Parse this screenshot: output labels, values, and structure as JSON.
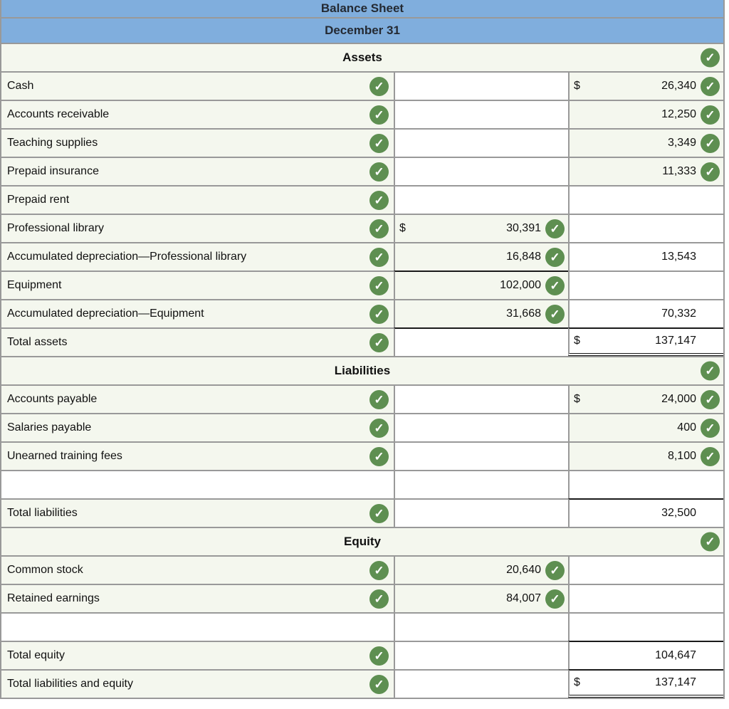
{
  "icons": {
    "check": "✓"
  },
  "colors": {
    "header_blue": "#80aedd",
    "correct_cell_green": "#f4f7ee",
    "check_green": "#5e8f51",
    "grid_border": "#999999",
    "total_line_black": "#1a1a1a"
  },
  "rows": [
    {
      "label": "Balance Sheet"
    },
    {
      "label": "December 31"
    },
    {
      "label": "Assets"
    },
    {
      "label": "Cash",
      "right_cur": "$",
      "right_val": "26,340"
    },
    {
      "label": "Accounts receivable",
      "right_val": "12,250"
    },
    {
      "label": "Teaching supplies",
      "right_val": "3,349"
    },
    {
      "label": "Prepaid insurance",
      "right_val": "11,333"
    },
    {
      "label": "Prepaid rent"
    },
    {
      "label": "Professional library",
      "mid_cur": "$",
      "mid_val": "30,391"
    },
    {
      "label": "Accumulated depreciation—Professional library",
      "mid_val": "16,848",
      "right_val": "13,543"
    },
    {
      "label": "Equipment",
      "mid_val": "102,000"
    },
    {
      "label": "Accumulated depreciation—Equipment",
      "mid_val": "31,668",
      "right_val": "70,332"
    },
    {
      "label": "Total assets",
      "right_cur": "$",
      "right_val": "137,147"
    },
    {
      "label": "Liabilities"
    },
    {
      "label": "Accounts payable",
      "right_cur": "$",
      "right_val": "24,000"
    },
    {
      "label": "Salaries payable",
      "right_val": "400"
    },
    {
      "label": "Unearned training fees",
      "right_val": "8,100"
    },
    {
      "label": ""
    },
    {
      "label": "Total liabilities",
      "right_val": "32,500"
    },
    {
      "label": "Equity"
    },
    {
      "label": "Common stock",
      "mid_val": "20,640"
    },
    {
      "label": "Retained earnings",
      "mid_val": "84,007"
    },
    {
      "label": ""
    },
    {
      "label": "Total equity",
      "right_val": "104,647"
    },
    {
      "label": "Total liabilities and equity",
      "right_cur": "$",
      "right_val": "137,147"
    }
  ]
}
